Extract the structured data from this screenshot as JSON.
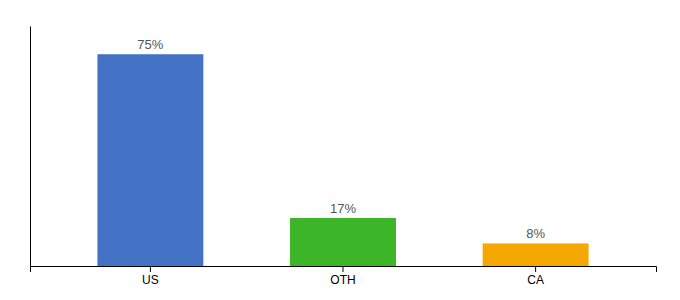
{
  "chart_data": {
    "type": "bar",
    "categories": [
      "US",
      "OTH",
      "CA"
    ],
    "values": [
      75,
      17,
      8
    ],
    "value_labels": [
      "75%",
      "17%",
      "8%"
    ],
    "colors": [
      "#4472c4",
      "#3db528",
      "#f5a800"
    ],
    "ylim": [
      0,
      85
    ],
    "data_labels": true,
    "tick_labels": "x",
    "grid": false
  }
}
